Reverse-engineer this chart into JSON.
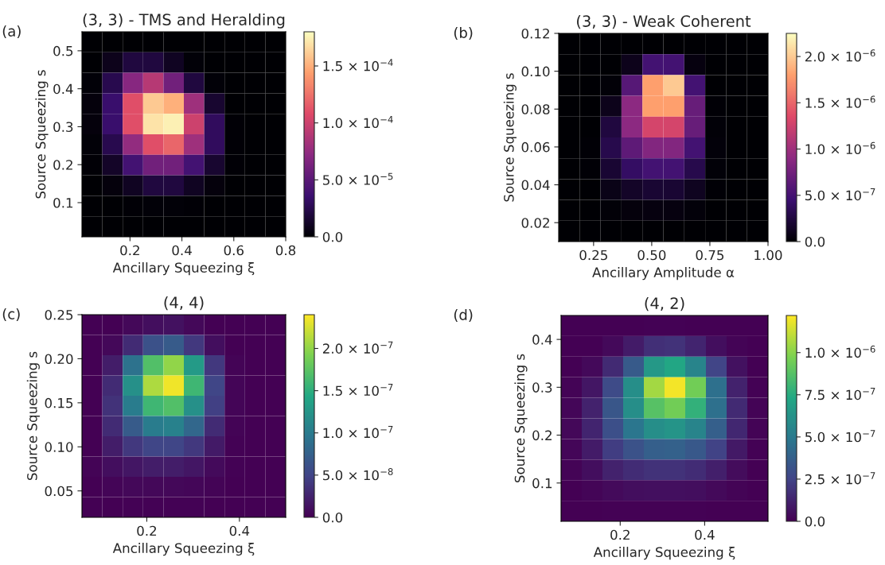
{
  "chart_data": [
    {
      "type": "heatmap",
      "title": "(3, 3) - TMS and Heralding",
      "xlabel": "Ancillary Squeezing ξ",
      "ylabel": "Source Squeezing s",
      "annotations": [
        "(a)"
      ],
      "xlim": [
        0.015,
        0.8
      ],
      "ylim": [
        0.01,
        0.55
      ],
      "xticks": [
        0.2,
        0.4,
        0.6,
        0.8
      ],
      "yticks": [
        0.1,
        0.2,
        0.3,
        0.4,
        0.5
      ],
      "colors": [
        "#000004",
        "#3b0f70",
        "#8c2981",
        "#de4968",
        "#fe9f6d",
        "#fcfdbf"
      ],
      "clim": [
        0,
        0.00018
      ],
      "cticks": [
        {
          "value": 0,
          "label": "0.0"
        },
        {
          "value": 5e-05,
          "label": "5.0 × 10$^{−5}$"
        },
        {
          "value": 0.0001,
          "label": "1.0 × 10$^{−4}$"
        },
        {
          "value": 0.00015,
          "label": "1.5 × 10$^{−4}$"
        }
      ],
      "cells": [
        [
          0,
          0,
          0,
          0,
          0,
          0,
          0,
          0,
          0,
          0
        ],
        [
          0,
          8e-06,
          2e-05,
          2e-05,
          1e-05,
          2e-06,
          0,
          0,
          0,
          0
        ],
        [
          2e-06,
          2.5e-05,
          7e-05,
          9e-05,
          6e-05,
          2e-05,
          2e-06,
          0,
          0,
          0
        ],
        [
          3e-06,
          3.5e-05,
          0.00011,
          0.00016,
          0.00015,
          8e-05,
          1.5e-05,
          0,
          0,
          0
        ],
        [
          3e-06,
          3.5e-05,
          0.00011,
          0.00017,
          0.000175,
          0.0001,
          3e-05,
          1e-06,
          0,
          0
        ],
        [
          2e-06,
          2.5e-05,
          7.5e-05,
          0.00011,
          0.00012,
          8e-05,
          3e-05,
          1e-06,
          0,
          0
        ],
        [
          1e-06,
          1.2e-05,
          4e-05,
          6e-05,
          6e-05,
          4e-05,
          1.5e-05,
          1e-06,
          0,
          0
        ],
        [
          0,
          3e-06,
          1e-05,
          2e-05,
          2e-05,
          1e-05,
          3e-06,
          0,
          0,
          0
        ],
        [
          0,
          0,
          1e-06,
          2e-06,
          2e-06,
          1e-06,
          0,
          0,
          0,
          0
        ],
        [
          0,
          0,
          0,
          0,
          0,
          0,
          0,
          0,
          0,
          0
        ]
      ]
    },
    {
      "type": "heatmap",
      "title": "(3, 3) - Weak Coherent",
      "xlabel": "Ancillary Amplitude α",
      "ylabel": "Source Squeezing s",
      "annotations": [
        "(b)"
      ],
      "xlim": [
        0.1,
        1.0
      ],
      "ylim": [
        0.01,
        0.12
      ],
      "xticks": [
        {
          "value": 0.25,
          "label": "0.25"
        },
        {
          "value": 0.5,
          "label": "0.50"
        },
        {
          "value": 0.75,
          "label": "0.75"
        },
        {
          "value": 1.0,
          "label": "1.00"
        }
      ],
      "yticks": [
        {
          "value": 0.02,
          "label": "0.02"
        },
        {
          "value": 0.04,
          "label": "0.04"
        },
        {
          "value": 0.06,
          "label": "0.06"
        },
        {
          "value": 0.08,
          "label": "0.08"
        },
        {
          "value": 0.1,
          "label": "0.10"
        },
        {
          "value": 0.12,
          "label": "0.12"
        }
      ],
      "colors": [
        "#000004",
        "#3b0f70",
        "#8c2981",
        "#de4968",
        "#fe9f6d",
        "#fcfdbf"
      ],
      "clim": [
        0,
        2.25e-06
      ],
      "cticks": [
        {
          "value": 0,
          "label": "0.0"
        },
        {
          "value": 5e-07,
          "label": "5.0 × 10$^{−7}$"
        },
        {
          "value": 1e-06,
          "label": "1.0 × 10$^{−6}$"
        },
        {
          "value": 1.5e-06,
          "label": "1.5 × 10$^{−6}$"
        },
        {
          "value": 2e-06,
          "label": "2.0 × 10$^{−6}$"
        }
      ],
      "cells": [
        [
          0,
          0,
          0,
          0,
          0,
          0,
          0,
          0,
          0,
          0
        ],
        [
          0,
          0,
          0,
          1e-07,
          5e-07,
          5e-07,
          5e-08,
          0,
          0,
          0
        ],
        [
          0,
          0,
          2e-08,
          6e-07,
          1.8e-06,
          2e-06,
          5e-07,
          0,
          0,
          0
        ],
        [
          0,
          0,
          1e-07,
          9e-07,
          1.8e-06,
          1.8e-06,
          7e-07,
          1e-08,
          0,
          0
        ],
        [
          0,
          0,
          2.5e-07,
          9e-07,
          1.3e-06,
          1.3e-06,
          7e-07,
          2e-08,
          0,
          0
        ],
        [
          0,
          1e-08,
          3e-07,
          6.5e-07,
          8.5e-07,
          8.5e-07,
          5e-07,
          3e-08,
          0,
          0
        ],
        [
          0,
          1e-08,
          2e-07,
          4e-07,
          5e-07,
          5e-07,
          3e-07,
          2e-08,
          0,
          0
        ],
        [
          0,
          0,
          8e-08,
          1.5e-07,
          2e-07,
          2e-07,
          1.2e-07,
          1e-08,
          0,
          0
        ],
        [
          0,
          0,
          2e-08,
          4e-08,
          5e-08,
          5e-08,
          3e-08,
          0,
          0,
          0
        ],
        [
          0,
          0,
          0,
          0,
          0,
          0,
          0,
          0,
          0,
          0
        ]
      ]
    },
    {
      "type": "heatmap",
      "title": "(4, 4)",
      "xlabel": "Ancillary Squeezing ξ",
      "ylabel": "Source Squeezing s",
      "annotations": [
        "(c)"
      ],
      "xlim": [
        0.06,
        0.5
      ],
      "ylim": [
        0.02,
        0.25
      ],
      "xticks": [
        0.2,
        0.4
      ],
      "yticks": [
        0.05,
        {
          "value": 0.1,
          "label": "0.10"
        },
        0.15,
        {
          "value": 0.2,
          "label": "0.20"
        },
        0.25
      ],
      "colors": [
        "#440154",
        "#414487",
        "#2a788e",
        "#22a884",
        "#7ad151",
        "#fde725"
      ],
      "clim": [
        0,
        2.4e-07
      ],
      "cticks": [
        {
          "value": 0,
          "label": "0.0"
        },
        {
          "value": 5e-08,
          "label": "5.0 × 10$^{−8}$"
        },
        {
          "value": 1e-07,
          "label": "1.0 × 10$^{−7}$"
        },
        {
          "value": 1.5e-07,
          "label": "1.5 × 10$^{−7}$"
        },
        {
          "value": 2e-07,
          "label": "2.0 × 10$^{−7}$"
        }
      ],
      "cells": [
        [
          0,
          0,
          5e-09,
          1e-08,
          1.2e-08,
          5e-09,
          0,
          0,
          0,
          0
        ],
        [
          0,
          5e-09,
          3e-08,
          6e-08,
          7e-08,
          4e-08,
          1e-08,
          0,
          0,
          0
        ],
        [
          0,
          2e-08,
          9e-08,
          1.7e-07,
          2e-07,
          1.3e-07,
          4e-08,
          2e-09,
          0,
          0
        ],
        [
          0,
          3e-08,
          1.2e-07,
          2.1e-07,
          2.35e-07,
          1.6e-07,
          5e-08,
          3e-09,
          0,
          0
        ],
        [
          0,
          3.5e-08,
          1e-07,
          1.6e-07,
          1.7e-07,
          1.2e-07,
          4.5e-08,
          3e-09,
          0,
          0
        ],
        [
          0,
          3e-08,
          7e-08,
          1e-07,
          1.05e-07,
          8e-08,
          3e-08,
          2e-09,
          0,
          0
        ],
        [
          0,
          2e-08,
          4e-08,
          5e-08,
          5e-08,
          4e-08,
          1.8e-08,
          1e-09,
          0,
          0
        ],
        [
          2e-09,
          1e-08,
          1.5e-08,
          2e-08,
          2e-08,
          1.5e-08,
          7e-09,
          1e-09,
          0,
          0
        ],
        [
          0,
          3e-09,
          5e-09,
          5e-09,
          5e-09,
          4e-09,
          2e-09,
          0,
          0,
          0
        ],
        [
          0,
          0,
          1e-09,
          1e-09,
          1e-09,
          1e-09,
          0,
          0,
          0,
          0
        ]
      ]
    },
    {
      "type": "heatmap",
      "title": "(4, 2)",
      "xlabel": "Ancillary Squeezing ξ",
      "ylabel": "Source Squeezing s",
      "annotations": [
        "(d)"
      ],
      "xlim": [
        0.06,
        0.55
      ],
      "ylim": [
        0.02,
        0.45
      ],
      "xticks": [
        0.2,
        0.4
      ],
      "yticks": [
        0.1,
        0.2,
        0.3,
        0.4
      ],
      "colors": [
        "#440154",
        "#414487",
        "#2a788e",
        "#22a884",
        "#7ad151",
        "#fde725"
      ],
      "clim": [
        0,
        1.22e-06
      ],
      "cticks": [
        {
          "value": 0,
          "label": "0.0"
        },
        {
          "value": 2.5e-07,
          "label": "2.5 × 10$^{−7}$"
        },
        {
          "value": 5e-07,
          "label": "5.0 × 10$^{−7}$"
        },
        {
          "value": 7.5e-07,
          "label": "7.5 × 10$^{−7}$"
        },
        {
          "value": 1e-06,
          "label": "1.0 × 10$^{−6}$"
        }
      ],
      "cells": [
        [
          0,
          0,
          0,
          0,
          5e-09,
          5e-09,
          2e-09,
          0,
          0,
          0
        ],
        [
          0,
          0,
          3e-08,
          1e-07,
          1.7e-07,
          1.8e-07,
          1.3e-07,
          5e-08,
          1e-08,
          0
        ],
        [
          0,
          3e-08,
          1.5e-07,
          3.5e-07,
          6.5e-07,
          7.2e-07,
          5.5e-07,
          2.5e-07,
          6e-08,
          0
        ],
        [
          1e-08,
          8e-08,
          2.8e-07,
          6e-07,
          1.05e-06,
          1.2e-06,
          9.5e-07,
          4.5e-07,
          1.2e-07,
          5e-09
        ],
        [
          2e-08,
          1.2e-07,
          3.3e-07,
          6e-07,
          8.8e-07,
          9.5e-07,
          7.8e-07,
          4.5e-07,
          1.5e-07,
          1e-08
        ],
        [
          2.5e-08,
          1.3e-07,
          3e-07,
          4.8e-07,
          6e-07,
          6.3e-07,
          5.5e-07,
          3.7e-07,
          1.4e-07,
          1e-08
        ],
        [
          2e-08,
          1e-07,
          2.2e-07,
          3.1e-07,
          3.7e-07,
          3.8e-07,
          3.4e-07,
          2.4e-07,
          9e-08,
          5e-09
        ],
        [
          1e-08,
          5e-08,
          1.2e-07,
          1.6e-07,
          1.8e-07,
          1.8e-07,
          1.6e-07,
          1.1e-07,
          4e-08,
          0
        ],
        [
          3e-09,
          1.5e-08,
          3.5e-08,
          5e-08,
          5.5e-08,
          5.5e-08,
          5e-08,
          3e-08,
          1e-08,
          0
        ],
        [
          0,
          2e-09,
          5e-09,
          8e-09,
          9e-09,
          9e-09,
          7e-09,
          4e-09,
          1e-09,
          0
        ]
      ]
    }
  ]
}
